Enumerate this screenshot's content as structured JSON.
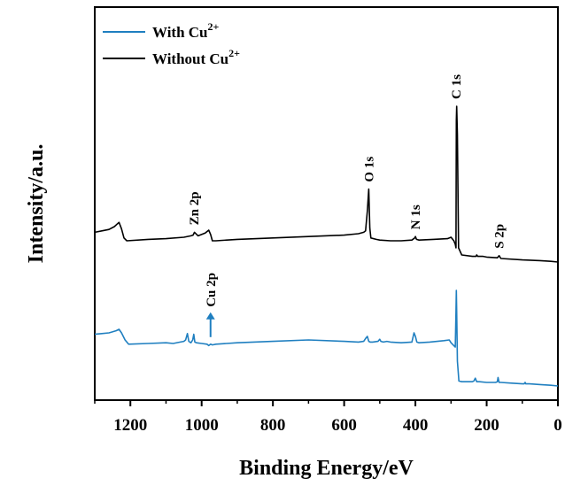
{
  "chart_data": {
    "type": "line",
    "xlabel": "Binding Energy/eV",
    "ylabel": "Intensity/a.u.",
    "xlim": [
      1300,
      0
    ],
    "x_reversed": true,
    "x_ticks": [
      "1200",
      "1000",
      "800",
      "600",
      "400",
      "200",
      "0"
    ],
    "x_tick_values": [
      1200,
      1000,
      800,
      600,
      400,
      200,
      0
    ],
    "y_ticks_shown": false,
    "grid": false,
    "legend": {
      "position": "top-left",
      "entries": [
        {
          "text": "With Cu",
          "sup": "2+",
          "series": "with_cu"
        },
        {
          "text": "Without Cu",
          "sup": "2+",
          "series": "without_cu"
        }
      ]
    },
    "series": [
      {
        "name": "With Cu2+",
        "key": "with_cu",
        "color": "#1f7fc0",
        "x": [
          1300,
          1280,
          1260,
          1240,
          1232,
          1225,
          1215,
          1205,
          1150,
          1100,
          1080,
          1060,
          1050,
          1045,
          1040,
          1036,
          1030,
          1025,
          1022,
          1019,
          1015,
          1000,
          985,
          980,
          975,
          970,
          960,
          900,
          800,
          700,
          600,
          560,
          545,
          540,
          535,
          531,
          527,
          520,
          505,
          500,
          497,
          490,
          480,
          470,
          440,
          410,
          404,
          400,
          396,
          390,
          360,
          320,
          305,
          300,
          292,
          288,
          286,
          285,
          284,
          282,
          278,
          270,
          240,
          236,
          232,
          228,
          220,
          200,
          175,
          170,
          168,
          165,
          160,
          130,
          100,
          95,
          92,
          90,
          80,
          50,
          20,
          0
        ],
        "y": [
          78,
          79,
          80,
          83,
          85,
          80,
          70,
          64,
          65,
          66,
          65,
          67,
          68,
          70,
          79,
          68,
          66,
          70,
          78,
          67,
          66,
          65,
          64,
          62,
          64,
          63,
          64,
          66,
          68,
          70,
          68,
          67,
          68,
          72,
          75,
          68,
          67,
          67,
          68,
          71,
          68,
          67,
          68,
          67,
          66,
          67,
          80,
          75,
          67,
          66,
          67,
          69,
          70,
          66,
          62,
          60,
          110,
          140,
          110,
          40,
          12,
          11,
          11,
          12,
          16,
          11,
          11,
          10,
          10,
          11,
          17,
          10,
          10,
          9,
          8,
          8,
          10,
          8,
          8,
          7,
          6,
          5
        ]
      },
      {
        "name": "Without Cu2+",
        "key": "without_cu",
        "color": "#000000",
        "x": [
          1300,
          1280,
          1260,
          1245,
          1232,
          1225,
          1218,
          1210,
          1150,
          1100,
          1050,
          1030,
          1024,
          1020,
          1010,
          990,
          980,
          975,
          970,
          960,
          900,
          800,
          700,
          600,
          560,
          545,
          540,
          535,
          531,
          528,
          525,
          510,
          500,
          470,
          440,
          410,
          402,
          400,
          397,
          390,
          350,
          310,
          300,
          292,
          288,
          286,
          285,
          284,
          282,
          279,
          270,
          240,
          230,
          228,
          225,
          210,
          200,
          170,
          165,
          160,
          100,
          50,
          20,
          0
        ],
        "y": [
          222,
          224,
          226,
          230,
          236,
          227,
          214,
          210,
          212,
          213,
          215,
          217,
          218,
          222,
          217,
          221,
          225,
          219,
          210,
          210,
          212,
          214,
          216,
          218,
          220,
          222,
          224,
          252,
          283,
          228,
          214,
          212,
          211,
          210,
          210,
          211,
          214,
          216,
          212,
          211,
          212,
          213,
          215,
          210,
          205,
          200,
          380,
          400,
          360,
          200,
          190,
          188,
          188,
          190,
          188,
          188,
          187,
          186,
          189,
          185,
          183,
          182,
          181,
          180
        ]
      }
    ],
    "peak_labels": [
      {
        "text": "C 1s",
        "x": 286,
        "y": 400,
        "series": "without_cu"
      },
      {
        "text": "O 1s",
        "x": 531,
        "y": 283,
        "series": "without_cu"
      },
      {
        "text": "N 1s",
        "x": 400,
        "y": 216,
        "series": "without_cu"
      },
      {
        "text": "Zn 2p",
        "x": 1022,
        "y": 222,
        "series": "without_cu"
      },
      {
        "text": "S 2p",
        "x": 165,
        "y": 189,
        "series": "without_cu"
      },
      {
        "text": "Cu 2p",
        "x": 975,
        "y": 64,
        "series": "with_cu",
        "arrow": true
      }
    ]
  }
}
